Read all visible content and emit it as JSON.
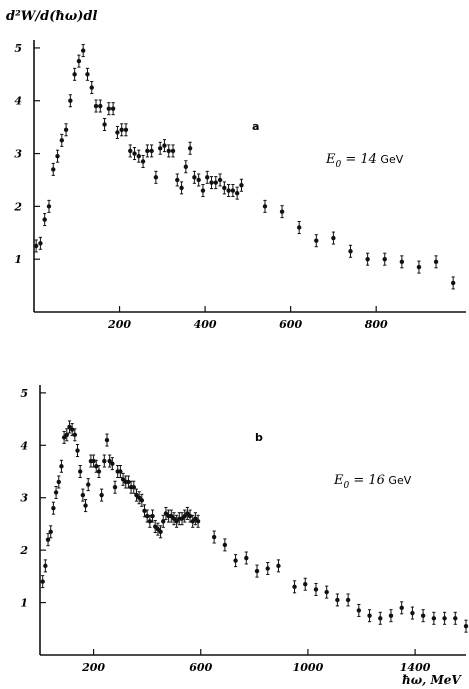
{
  "y_axis_label": "d²W/d(ħω)dl",
  "chart_data": [
    {
      "type": "scatter",
      "panel_label": "a",
      "energy_label": "E",
      "energy_subscript": "0",
      "energy_value": " = 14",
      "energy_unit": " GeV",
      "xlabel": "",
      "xlim": [
        0,
        1010
      ],
      "ylim": [
        0,
        5.15
      ],
      "xticks": [
        200,
        400,
        600,
        800
      ],
      "yticks": [
        1,
        2,
        3,
        4,
        5
      ],
      "x": [
        5,
        15,
        25,
        35,
        45,
        55,
        65,
        75,
        85,
        95,
        105,
        115,
        125,
        135,
        145,
        155,
        165,
        175,
        185,
        195,
        205,
        215,
        225,
        235,
        245,
        255,
        265,
        275,
        285,
        295,
        305,
        315,
        325,
        335,
        345,
        355,
        365,
        375,
        385,
        395,
        405,
        415,
        425,
        435,
        445,
        455,
        465,
        475,
        485,
        540,
        580,
        620,
        660,
        700,
        740,
        780,
        820,
        860,
        900,
        940,
        980
      ],
      "y": [
        1.25,
        1.3,
        1.75,
        2.0,
        2.7,
        2.95,
        3.25,
        3.45,
        4.0,
        4.5,
        4.75,
        4.95,
        4.5,
        4.25,
        3.9,
        3.9,
        3.55,
        3.85,
        3.85,
        3.4,
        3.45,
        3.45,
        3.05,
        3.0,
        2.95,
        2.85,
        3.05,
        3.05,
        2.55,
        3.1,
        3.15,
        3.05,
        3.05,
        2.5,
        2.35,
        2.75,
        3.1,
        2.55,
        2.5,
        2.3,
        2.55,
        2.45,
        2.45,
        2.5,
        2.35,
        2.3,
        2.3,
        2.25,
        2.4,
        2.0,
        1.9,
        1.6,
        1.35,
        1.4,
        1.15,
        1.0,
        1.0,
        0.95,
        0.85,
        0.95,
        0.55
      ]
    },
    {
      "type": "scatter",
      "panel_label": "b",
      "energy_label": "E",
      "energy_subscript": "0",
      "energy_value": " = 16",
      "energy_unit": " GeV",
      "xlabel": "ħω, MeV",
      "xlim": [
        0,
        1590
      ],
      "ylim": [
        0,
        5.15
      ],
      "xticks": [
        200,
        600,
        1000,
        1400
      ],
      "yticks": [
        1,
        2,
        3,
        4,
        5
      ],
      "x": [
        10,
        20,
        30,
        40,
        50,
        60,
        70,
        80,
        90,
        100,
        110,
        120,
        130,
        140,
        150,
        160,
        170,
        180,
        190,
        200,
        210,
        220,
        230,
        240,
        250,
        260,
        270,
        280,
        290,
        300,
        310,
        320,
        330,
        340,
        350,
        360,
        370,
        380,
        390,
        400,
        410,
        420,
        430,
        440,
        450,
        460,
        470,
        480,
        490,
        500,
        510,
        520,
        530,
        540,
        550,
        560,
        570,
        580,
        590,
        650,
        690,
        730,
        770,
        810,
        850,
        890,
        950,
        990,
        1030,
        1070,
        1110,
        1150,
        1190,
        1230,
        1270,
        1310,
        1350,
        1390,
        1430,
        1470,
        1510,
        1550,
        1590
      ],
      "y": [
        1.4,
        1.7,
        2.2,
        2.35,
        2.8,
        3.1,
        3.3,
        3.6,
        4.15,
        4.2,
        4.35,
        4.3,
        4.2,
        3.9,
        3.5,
        3.05,
        2.85,
        3.25,
        3.7,
        3.7,
        3.6,
        3.5,
        3.05,
        3.7,
        4.1,
        3.7,
        3.65,
        3.2,
        3.5,
        3.5,
        3.35,
        3.3,
        3.3,
        3.2,
        3.2,
        3.05,
        3.0,
        2.95,
        2.75,
        2.65,
        2.55,
        2.65,
        2.45,
        2.4,
        2.35,
        2.55,
        2.7,
        2.65,
        2.65,
        2.6,
        2.55,
        2.6,
        2.6,
        2.65,
        2.7,
        2.65,
        2.55,
        2.6,
        2.55,
        2.25,
        2.1,
        1.8,
        1.85,
        1.6,
        1.65,
        1.7,
        1.3,
        1.35,
        1.25,
        1.2,
        1.05,
        1.05,
        0.85,
        0.75,
        0.7,
        0.75,
        0.9,
        0.8,
        0.75,
        0.7,
        0.7,
        0.7,
        0.55
      ]
    }
  ]
}
